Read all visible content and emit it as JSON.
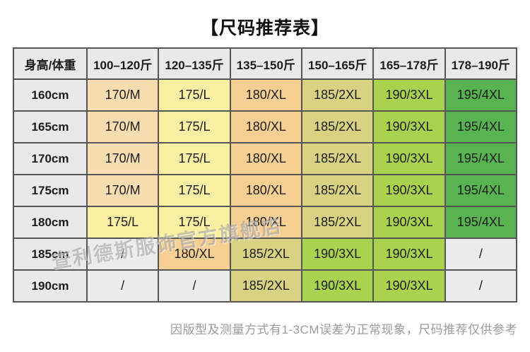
{
  "title": "【尺码推荐表】",
  "watermark": "查利德斯服饰官方旗舰店",
  "footnote": "因版型及测量方式有1-3CM误差为正常现象，尺码推荐仅供参考",
  "table": {
    "corner_header": "身高/体重",
    "weight_headers": [
      "100–120斤",
      "120–135斤",
      "135–150斤",
      "150–165斤",
      "165–178斤",
      "178–190斤"
    ],
    "rows": [
      {
        "height": "160cm",
        "cells": [
          "170/M",
          "175/L",
          "180/XL",
          "185/2XL",
          "190/3XL",
          "195/4XL"
        ]
      },
      {
        "height": "165cm",
        "cells": [
          "170/M",
          "175/L",
          "180/XL",
          "185/2XL",
          "190/3XL",
          "195/4XL"
        ]
      },
      {
        "height": "170cm",
        "cells": [
          "170/M",
          "175/L",
          "180/XL",
          "185/2XL",
          "190/3XL",
          "195/4XL"
        ]
      },
      {
        "height": "175cm",
        "cells": [
          "170/M",
          "175/L",
          "180/XL",
          "185/2XL",
          "190/3XL",
          "195/4XL"
        ]
      },
      {
        "height": "180cm",
        "cells": [
          "175/L",
          "175/L",
          "180/XL",
          "185/2XL",
          "190/3XL",
          "195/4XL"
        ]
      },
      {
        "height": "185cm",
        "cells": [
          "/",
          "180/XL",
          "185/2XL",
          "190/3XL",
          "190/3XL",
          "/"
        ]
      },
      {
        "height": "190cm",
        "cells": [
          "/",
          "/",
          "185/2XL",
          "190/3XL",
          "190/3XL",
          "/"
        ]
      }
    ]
  },
  "colors": {
    "header_bg": "#e9e9e9",
    "border": "#555555",
    "size_colors": {
      "170/M": "#f8ddb0",
      "175/L": "#f9f0a3",
      "180/XL": "#f6cf93",
      "185/2XL": "#d8d282",
      "190/3XL": "#a9d24e",
      "195/4XL": "#58b450",
      "/": "#ececec"
    }
  },
  "chart_data": {
    "type": "table",
    "title": "【尺码推荐表】",
    "columns": [
      "身高/体重",
      "100–120斤",
      "120–135斤",
      "135–150斤",
      "150–165斤",
      "165–178斤",
      "178–190斤"
    ],
    "rows": [
      [
        "160cm",
        "170/M",
        "175/L",
        "180/XL",
        "185/2XL",
        "190/3XL",
        "195/4XL"
      ],
      [
        "165cm",
        "170/M",
        "175/L",
        "180/XL",
        "185/2XL",
        "190/3XL",
        "195/4XL"
      ],
      [
        "170cm",
        "170/M",
        "175/L",
        "180/XL",
        "185/2XL",
        "190/3XL",
        "195/4XL"
      ],
      [
        "175cm",
        "170/M",
        "175/L",
        "180/XL",
        "185/2XL",
        "190/3XL",
        "195/4XL"
      ],
      [
        "180cm",
        "175/L",
        "175/L",
        "180/XL",
        "185/2XL",
        "190/3XL",
        "195/4XL"
      ],
      [
        "185cm",
        "/",
        "180/XL",
        "185/2XL",
        "190/3XL",
        "190/3XL",
        "/"
      ],
      [
        "190cm",
        "/",
        "/",
        "185/2XL",
        "190/3XL",
        "190/3XL",
        "/"
      ]
    ],
    "note": "因版型及测量方式有1-3CM误差为正常现象，尺码推荐仅供参考"
  }
}
